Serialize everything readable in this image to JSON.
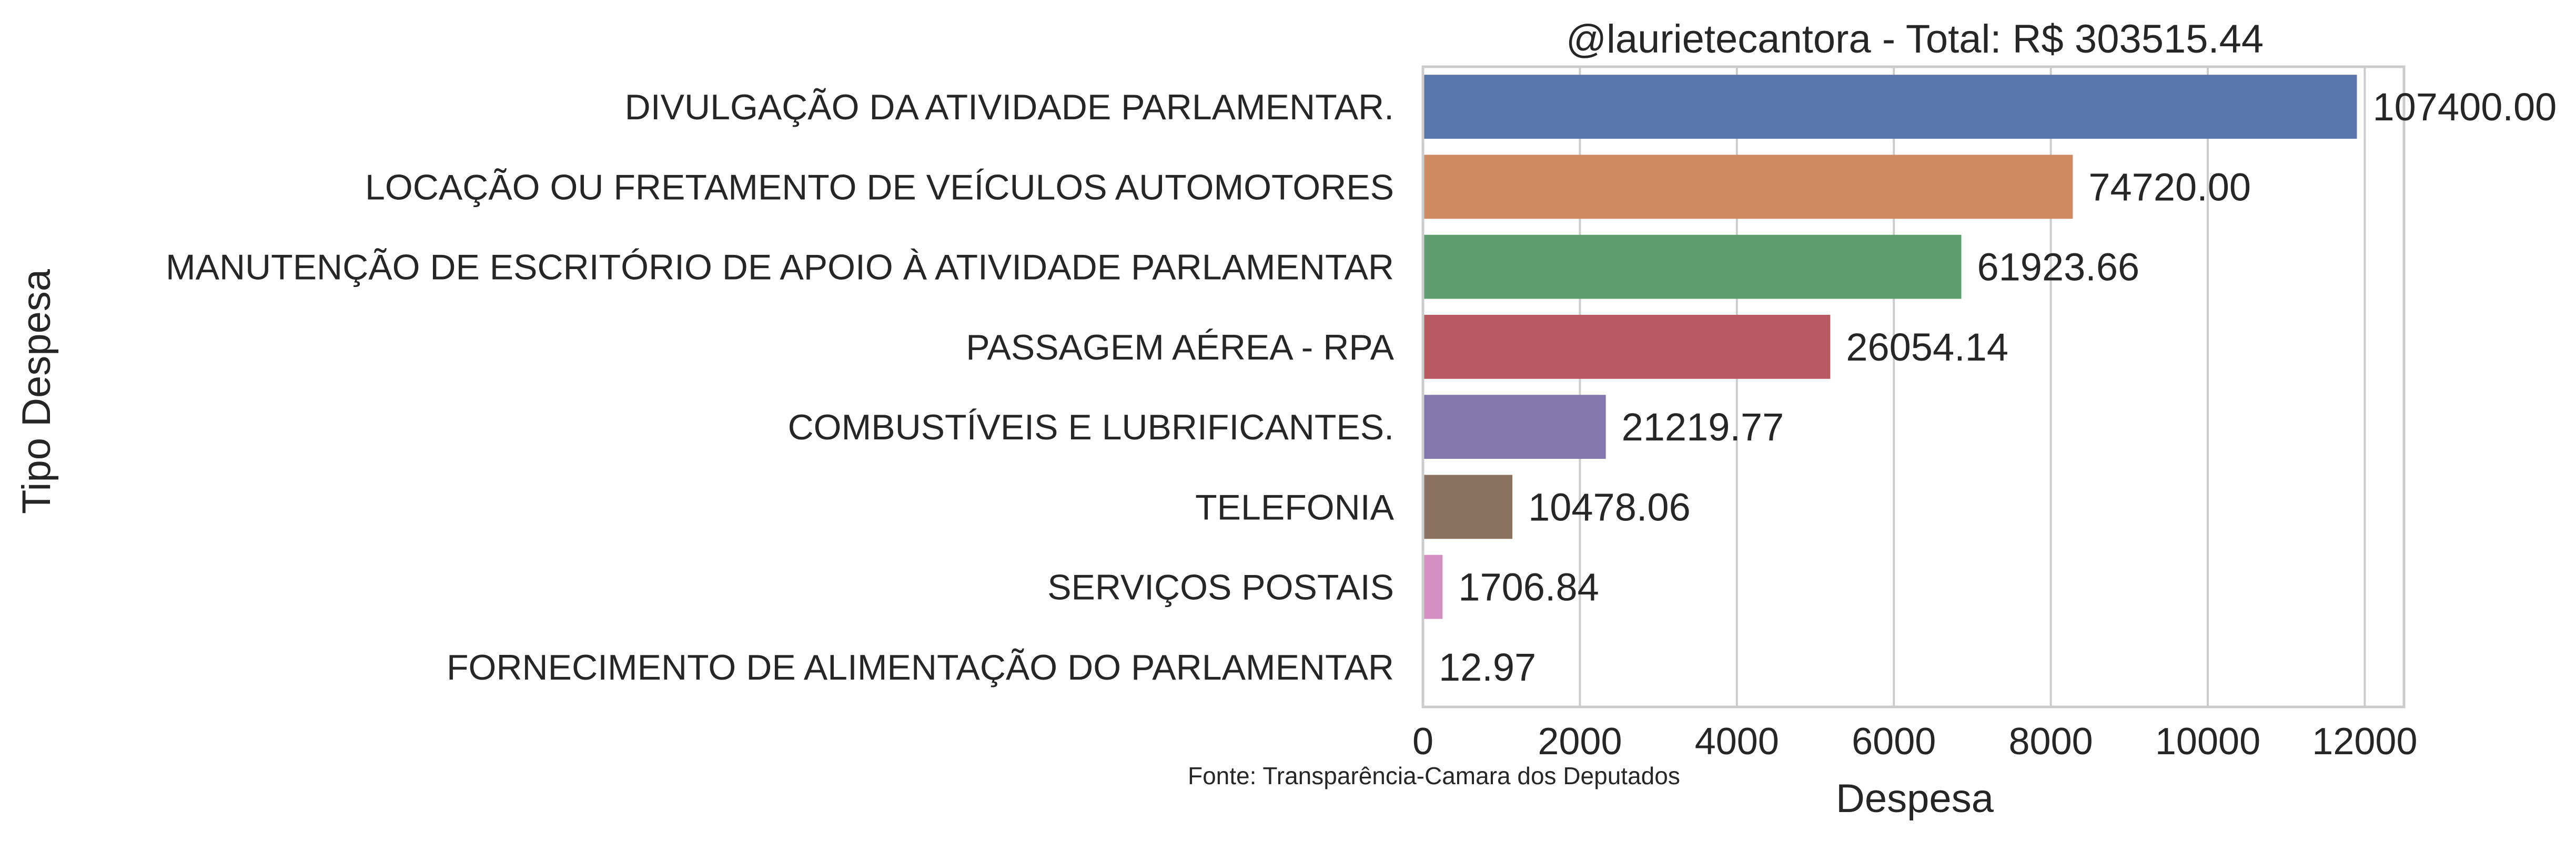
{
  "chart_data": {
    "type": "bar",
    "orientation": "horizontal",
    "title": "@laurietecantora - Total: R$ 303515.44",
    "xlabel": "Despesa",
    "ylabel": "Tipo Despesa",
    "xlim": [
      0,
      12500
    ],
    "xticks": [
      0,
      2000,
      4000,
      6000,
      8000,
      10000,
      12000
    ],
    "grid": "vertical",
    "source_note": "Fonte: Transparência-Camara dos Deputados",
    "categories": [
      "DIVULGAÇÃO DA ATIVIDADE PARLAMENTAR.",
      "LOCAÇÃO OU FRETAMENTO DE VEÍCULOS AUTOMOTORES",
      "MANUTENÇÃO DE ESCRITÓRIO DE APOIO À ATIVIDADE PARLAMENTAR",
      "PASSAGEM AÉREA - RPA",
      "COMBUSTÍVEIS E LUBRIFICANTES.",
      "TELEFONIA",
      "SERVIÇOS POSTAIS",
      "FORNECIMENTO DE ALIMENTAÇÃO DO PARLAMENTAR"
    ],
    "values": [
      11900,
      8280,
      6860,
      5190,
      2330,
      1140,
      250,
      0
    ],
    "data_labels": [
      "107400.00",
      "74720.00",
      "61923.66",
      "26054.14",
      "21219.77",
      "10478.06",
      "1706.84",
      "12.97"
    ],
    "colors": [
      "#5874a8",
      "#cf8a62",
      "#5e9f6e",
      "#b75a61",
      "#8477ad",
      "#8c7360",
      "#d490c0",
      "#8c8c8c"
    ]
  }
}
